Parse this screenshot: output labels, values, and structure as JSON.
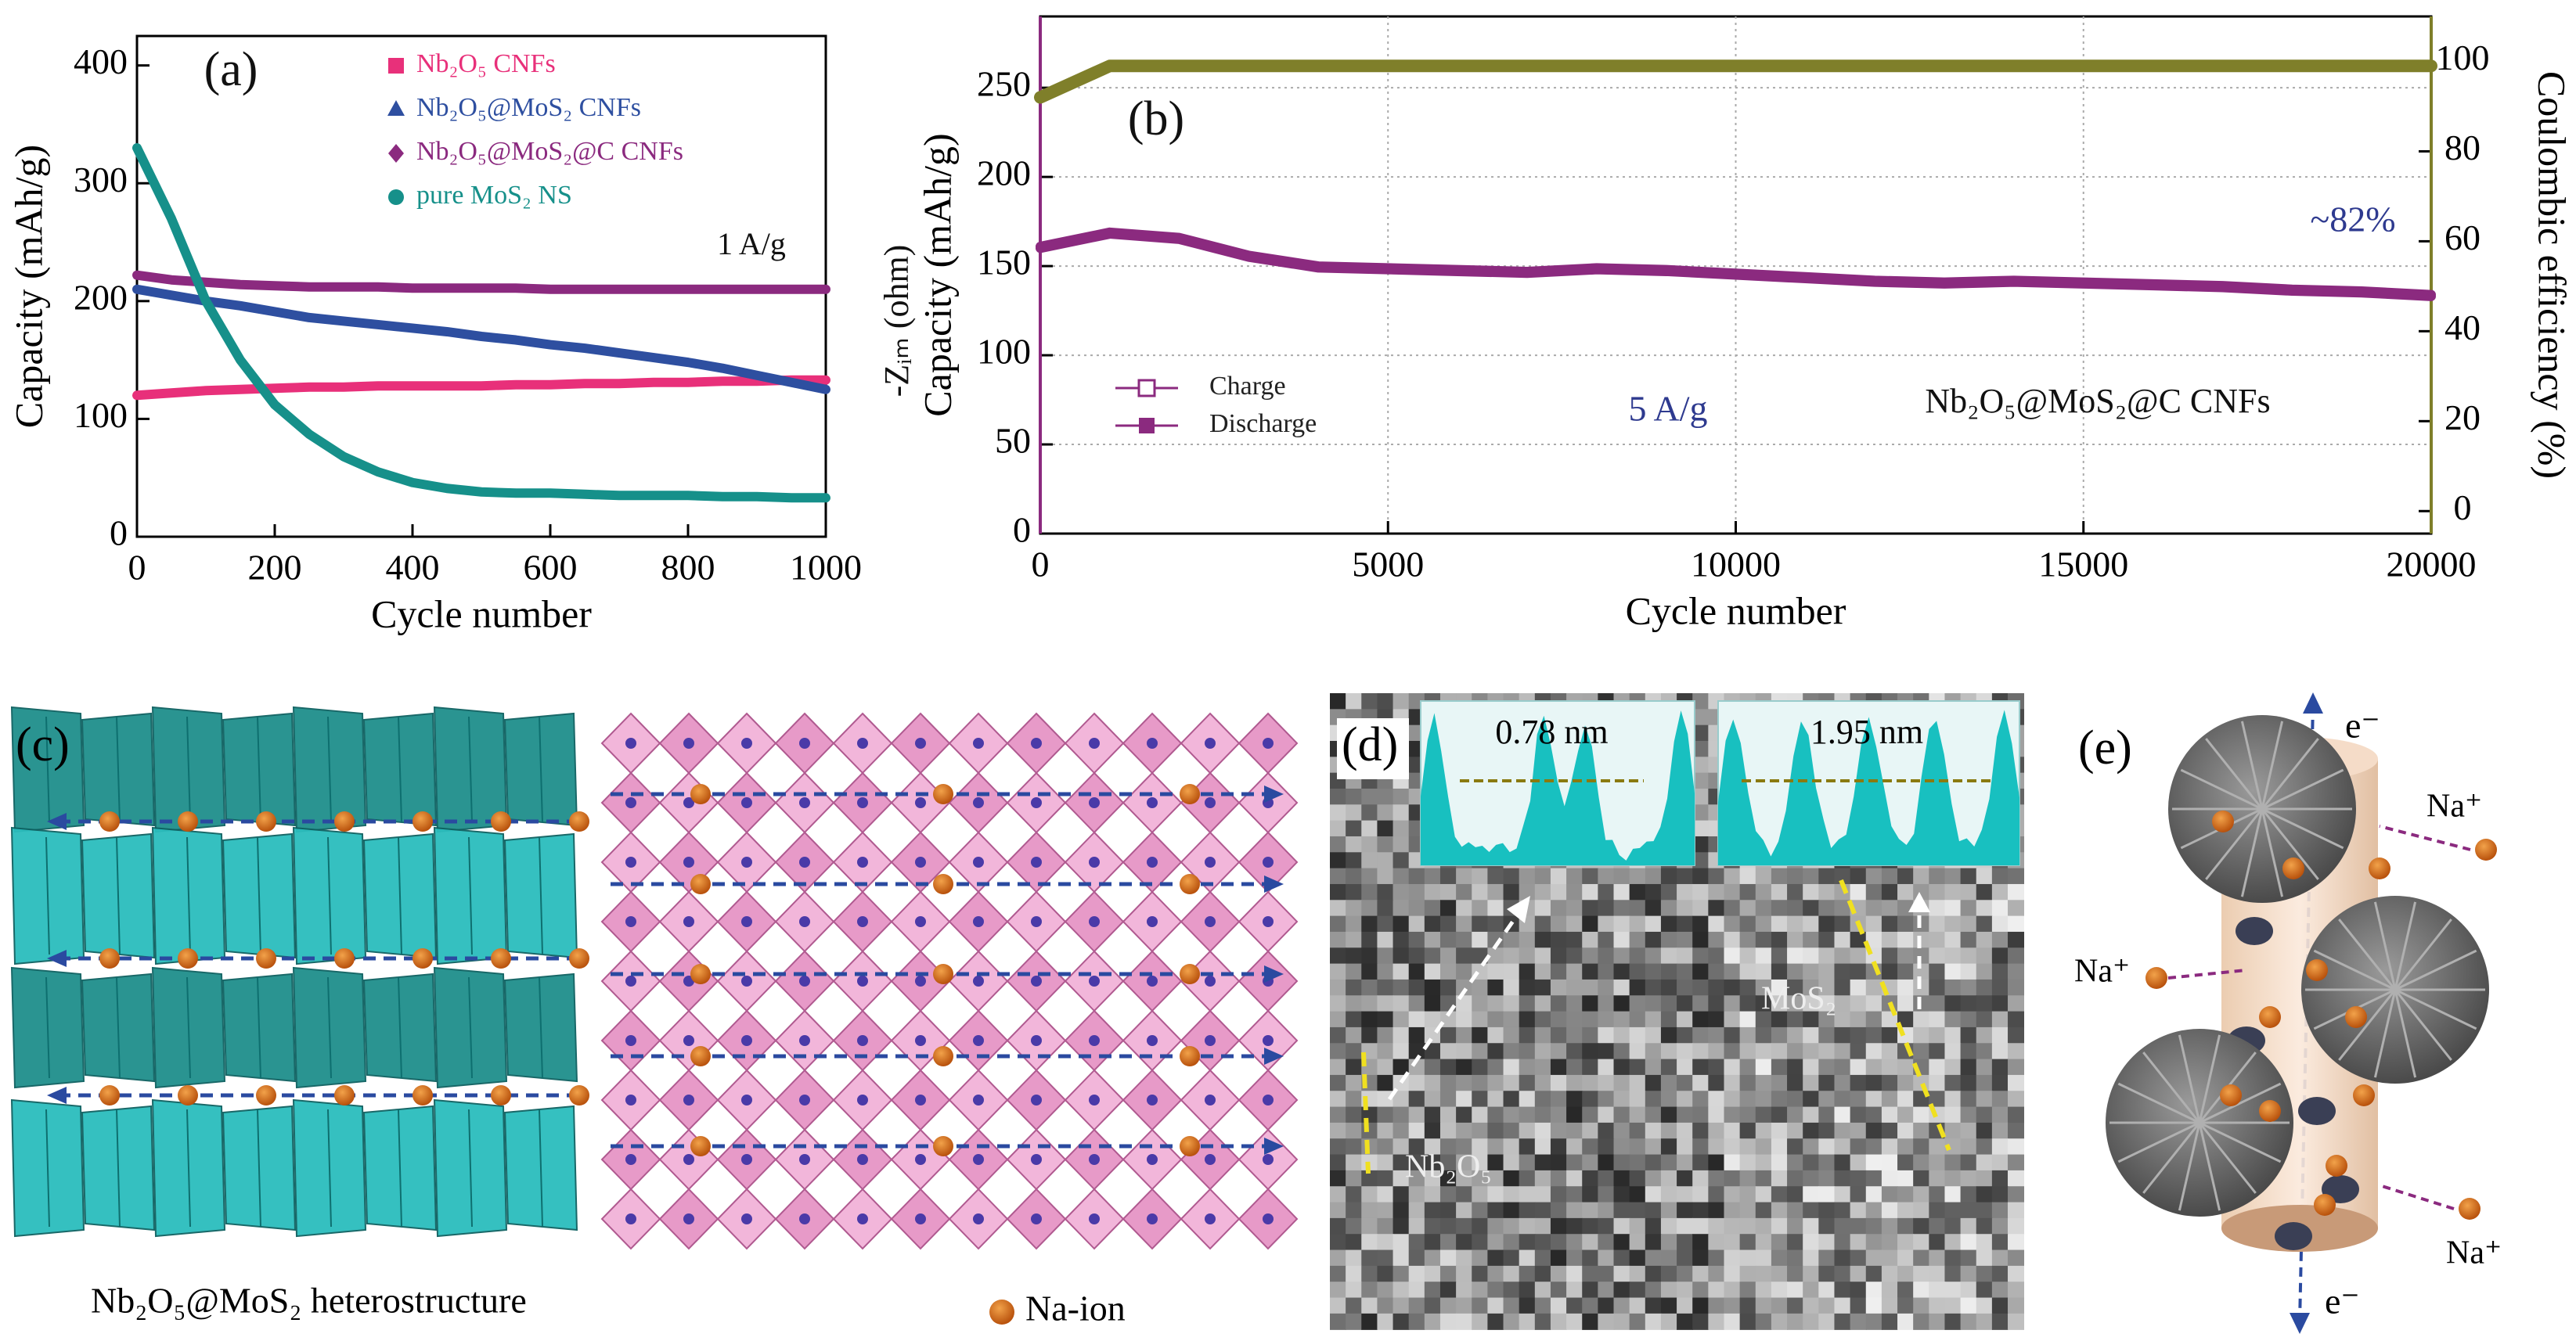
{
  "chart_data": [
    {
      "type": "line",
      "xlabel": "Cycle number",
      "ylabel": "Capacity (mAh/g)",
      "x": [
        0,
        50,
        100,
        150,
        200,
        250,
        300,
        350,
        400,
        450,
        500,
        550,
        600,
        650,
        700,
        750,
        800,
        850,
        900,
        950,
        1000
      ],
      "series": [
        {
          "name": "Nb₂O₅ CNFs",
          "color": "#e8307a",
          "marker": "square",
          "values": [
            120,
            122,
            124,
            125,
            126,
            127,
            127,
            128,
            128,
            128,
            128,
            129,
            129,
            130,
            130,
            131,
            131,
            132,
            132,
            133,
            133
          ]
        },
        {
          "name": "Nb₂O₅@MoS₂ CNFs",
          "color": "#2e4fa0",
          "marker": "triangle",
          "values": [
            210,
            205,
            200,
            196,
            191,
            186,
            183,
            180,
            177,
            174,
            170,
            167,
            163,
            160,
            156,
            152,
            148,
            143,
            137,
            131,
            125
          ]
        },
        {
          "name": "Nb₂O₅@MoS₂@C CNFs",
          "color": "#8b2a7f",
          "marker": "diamond",
          "values": [
            222,
            218,
            216,
            214,
            213,
            212,
            212,
            212,
            211,
            211,
            211,
            211,
            210,
            210,
            210,
            210,
            210,
            210,
            210,
            210,
            210
          ]
        },
        {
          "name": "pure MoS₂ NS",
          "color": "#16908a",
          "marker": "circle",
          "values": [
            330,
            270,
            200,
            150,
            112,
            87,
            68,
            55,
            46,
            41,
            38,
            37,
            37,
            36,
            35,
            35,
            35,
            34,
            34,
            33,
            33
          ]
        }
      ],
      "xlim": [
        0,
        1000
      ],
      "xticks": [
        0,
        200,
        400,
        600,
        800,
        1000
      ],
      "ylim": [
        0,
        425
      ],
      "yticks": [
        0,
        100,
        200,
        300,
        400
      ],
      "grid": false,
      "legend": "upper center",
      "annotations": [
        {
          "text": "(a)"
        },
        {
          "text": "1 A/g"
        }
      ]
    },
    {
      "type": "line",
      "xlabel": "Cycle number",
      "ylabel": "Capacity (mAh/g)",
      "y2label": "Coulombic efficiency (%)",
      "x": [
        0,
        1000,
        2000,
        3000,
        4000,
        5000,
        6000,
        7000,
        8000,
        9000,
        10000,
        11000,
        12000,
        13000,
        14000,
        15000,
        16000,
        17000,
        18000,
        19000,
        20000
      ],
      "series": [
        {
          "name": "Charge",
          "color": "#8b2a7f",
          "marker": "open-square",
          "values": [
            161,
            169,
            166,
            156,
            150,
            149,
            148,
            147,
            149,
            148,
            146,
            144,
            142,
            141,
            142,
            141,
            140,
            139,
            137,
            136,
            134
          ]
        },
        {
          "name": "Discharge",
          "color": "#8b2a7f",
          "marker": "square",
          "values": [
            160,
            168,
            165,
            155,
            149,
            148,
            147,
            146,
            148,
            147,
            145,
            143,
            141,
            140,
            141,
            140,
            139,
            138,
            136,
            135,
            133
          ]
        },
        {
          "color": "#7f7f2a",
          "axis": "y2",
          "values": [
            92,
            99,
            99,
            99,
            99,
            99,
            99,
            99,
            99,
            99,
            99,
            99,
            99,
            99,
            99,
            99,
            99,
            99,
            99,
            99,
            99
          ]
        }
      ],
      "xlim": [
        0,
        20000
      ],
      "xticks": [
        0,
        5000,
        10000,
        15000,
        20000
      ],
      "ylim": [
        0,
        290
      ],
      "yticks": [
        0,
        50,
        100,
        150,
        200,
        250
      ],
      "y2lim": [
        -5,
        110
      ],
      "y2ticks": [
        0,
        20,
        40,
        60,
        80,
        100
      ],
      "grid": true,
      "legend": "lower left",
      "annotations": [
        {
          "text": "(b)"
        },
        {
          "text": "~82%",
          "color": "#2e3a8f"
        },
        {
          "text": "5 A/g",
          "color": "#2e3a8f"
        },
        {
          "text": "Nb₂O₅@MoS₂@C CNFs"
        },
        {
          "text": "-Zᵢₘ (ohm)"
        }
      ]
    }
  ],
  "panels": {
    "c": {
      "label": "(c)",
      "caption": "Nb₂O₅@MoS₂ heterostructure",
      "legend": "Na-ion"
    },
    "d": {
      "label": "(d)",
      "spacings": [
        "0.78 nm",
        "1.95 nm"
      ],
      "materials": [
        "MoS₂",
        "Nb₂O₅"
      ]
    },
    "e": {
      "label": "(e)",
      "electrons": [
        "e⁻",
        "e⁻"
      ],
      "ions": [
        "Na⁺",
        "Na⁺",
        "Na⁺"
      ]
    }
  }
}
